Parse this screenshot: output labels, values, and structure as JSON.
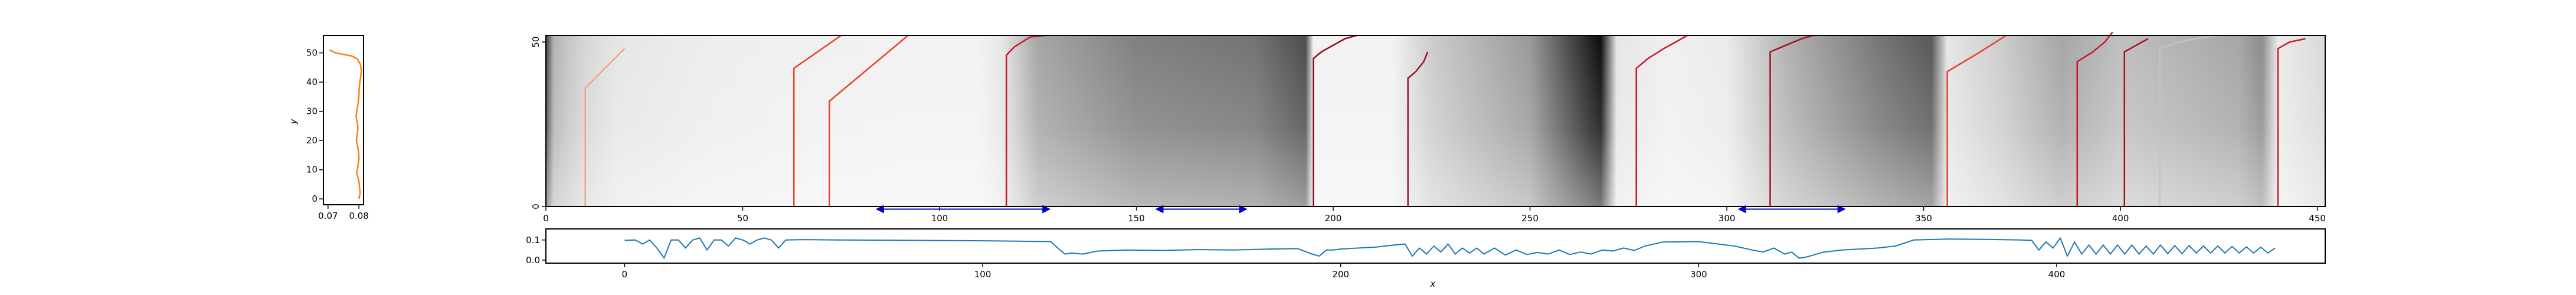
{
  "chart_data": [
    {
      "panel": "left-profile",
      "type": "line",
      "title": "",
      "xlabel": "",
      "ylabel": "y",
      "xlim": [
        0.0685,
        0.0815
      ],
      "ylim": [
        -2,
        56
      ],
      "xticks": [
        0.07,
        0.08
      ],
      "xtick_labels": [
        "0.07",
        "0.08"
      ],
      "yticks": [
        0,
        10,
        20,
        30,
        40,
        50
      ],
      "ytick_labels": [
        "0",
        "10",
        "20",
        "30",
        "40",
        "50"
      ],
      "grid": false,
      "color": "#ff7f0e",
      "series": [
        {
          "x": [
            0.0705,
            0.0725,
            0.075,
            0.0775,
            0.0795,
            0.0805,
            0.0808,
            0.0806,
            0.0803,
            0.0801,
            0.08,
            0.0799,
            0.0796,
            0.0793,
            0.0791,
            0.0795,
            0.0797,
            0.0794,
            0.0792,
            0.0796,
            0.0799,
            0.08,
            0.0798,
            0.0795,
            0.0793,
            0.0795,
            0.0798,
            0.08,
            0.0801,
            0.0802,
            0.0803,
            0.0804,
            0.0802,
            0.08,
            0.0802
          ],
          "y": [
            51,
            50,
            49.5,
            49,
            48,
            46,
            44,
            42,
            40,
            38,
            36,
            34,
            32,
            30,
            28,
            26,
            24,
            22,
            20,
            18,
            16,
            14,
            12,
            10,
            9,
            8,
            7,
            6,
            5,
            4,
            3,
            2,
            1,
            0.5,
            0
          ]
        }
      ]
    },
    {
      "panel": "main-heatmap",
      "type": "heatmap",
      "title": "",
      "xlabel": "",
      "ylabel": "",
      "xlim": [
        0,
        452
      ],
      "ylim": [
        0,
        52
      ],
      "xticks": [
        0,
        50,
        100,
        150,
        200,
        250,
        300,
        350,
        400,
        450
      ],
      "xtick_labels": [
        "0",
        "50",
        "100",
        "150",
        "200",
        "250",
        "300",
        "350",
        "400",
        "450"
      ],
      "yticks": [
        0,
        50
      ],
      "ytick_labels": [
        "0",
        "50"
      ],
      "colormap": "greys",
      "grid": false,
      "column_darkness": [
        [
          0,
          0.75
        ],
        [
          2,
          0.3
        ],
        [
          6,
          0.22
        ],
        [
          10,
          0.16
        ],
        [
          18,
          0.1
        ],
        [
          40,
          0.07
        ],
        [
          60,
          0.06
        ],
        [
          90,
          0.05
        ],
        [
          110,
          0.05
        ],
        [
          116,
          0.1
        ],
        [
          125,
          0.35
        ],
        [
          150,
          0.5
        ],
        [
          180,
          0.55
        ],
        [
          193,
          0.7
        ],
        [
          195,
          0.05
        ],
        [
          215,
          0.05
        ],
        [
          225,
          0.2
        ],
        [
          250,
          0.4
        ],
        [
          268,
          0.95
        ],
        [
          272,
          0.1
        ],
        [
          285,
          0.06
        ],
        [
          300,
          0.08
        ],
        [
          315,
          0.3
        ],
        [
          340,
          0.55
        ],
        [
          352,
          0.65
        ],
        [
          356,
          0.1
        ],
        [
          370,
          0.2
        ],
        [
          385,
          0.35
        ],
        [
          400,
          0.25
        ],
        [
          415,
          0.3
        ],
        [
          430,
          0.35
        ],
        [
          436,
          0.45
        ],
        [
          440,
          0.08
        ],
        [
          452,
          0.15
        ]
      ],
      "overlay_lines": [
        {
          "x": [
            10,
            10,
            20
          ],
          "y": [
            0,
            36,
            48
          ],
          "color": "#f4a582"
        },
        {
          "x": [
            63,
            63,
            75
          ],
          "y": [
            0,
            42,
            52
          ],
          "color": "#e8402a"
        },
        {
          "x": [
            72,
            72,
            92
          ],
          "y": [
            0,
            32,
            52
          ],
          "color": "#e8402a"
        },
        {
          "x": [
            117,
            117,
            119,
            121,
            123,
            127
          ],
          "y": [
            0,
            46,
            48.5,
            50,
            51.5,
            52
          ],
          "color": "#c9172c"
        },
        {
          "x": [
            195,
            195,
            197,
            200,
            203,
            206
          ],
          "y": [
            0,
            45,
            47,
            49,
            51,
            52
          ],
          "color": "#8c0a1f"
        },
        {
          "x": [
            219,
            219,
            221,
            223,
            224
          ],
          "y": [
            0,
            39,
            41,
            44,
            47
          ],
          "color": "#9d0f24"
        },
        {
          "x": [
            277,
            277,
            280,
            284,
            290
          ],
          "y": [
            0,
            42,
            45,
            48,
            52
          ],
          "color": "#c9172c"
        },
        {
          "x": [
            311,
            311,
            315,
            319,
            322
          ],
          "y": [
            0,
            47,
            49,
            51,
            52
          ],
          "color": "#a50f22"
        },
        {
          "x": [
            356,
            356,
            363,
            371
          ],
          "y": [
            0,
            41,
            46,
            52
          ],
          "color": "#e8402a"
        },
        {
          "x": [
            389,
            389,
            393,
            396,
            398
          ],
          "y": [
            0,
            44,
            47,
            50,
            53
          ],
          "color": "#c9172c"
        },
        {
          "x": [
            401,
            401,
            404,
            407
          ],
          "y": [
            0,
            47,
            49,
            51
          ],
          "color": "#a50f22"
        },
        {
          "x": [
            410,
            410,
            415,
            419,
            425
          ],
          "y": [
            0,
            48,
            50,
            51,
            52
          ],
          "color": "#d3bfb0"
        },
        {
          "x": [
            440,
            440,
            443,
            447
          ],
          "y": [
            0,
            48,
            50,
            51
          ],
          "color": "#c9172c"
        }
      ],
      "annotations": [
        {
          "type": "double-arrow",
          "x": [
            84,
            128
          ],
          "y": -0.8,
          "color": "#0000cc"
        },
        {
          "type": "double-arrow",
          "x": [
            155,
            178
          ],
          "y": -0.8,
          "color": "#0000cc"
        },
        {
          "type": "double-arrow",
          "x": [
            303,
            330
          ],
          "y": -0.8,
          "color": "#0000cc"
        }
      ]
    },
    {
      "panel": "bottom-signal",
      "type": "line",
      "title": "",
      "xlabel": "x",
      "ylabel": "",
      "xlim": [
        -22,
        475
      ],
      "ylim": [
        -0.015,
        0.155
      ],
      "xticks": [
        0,
        100,
        200,
        300,
        400
      ],
      "xtick_labels": [
        "0",
        "100",
        "200",
        "300",
        "400"
      ],
      "yticks": [
        0.0,
        0.1
      ],
      "ytick_labels": [
        "0.0",
        "0.1"
      ],
      "grid": false,
      "color": "#1f77b4",
      "series": [
        {
          "x": [
            0,
            3,
            5,
            7,
            9,
            11,
            13,
            15,
            17,
            19,
            21,
            23,
            25,
            27,
            29,
            31,
            33,
            35,
            37,
            39,
            41,
            43,
            45,
            50,
            60,
            80,
            100,
            110,
            115,
            119,
            121,
            123,
            125,
            128,
            132,
            140,
            150,
            160,
            170,
            180,
            188,
            192,
            194,
            196,
            198,
            200,
            205,
            210,
            215,
            218,
            220,
            222,
            224,
            226,
            228,
            230,
            232,
            234,
            236,
            238,
            240,
            243,
            246,
            249,
            252,
            255,
            258,
            261,
            264,
            267,
            270,
            273,
            276,
            279,
            282,
            285,
            290,
            300,
            310,
            315,
            318,
            321,
            324,
            326,
            328,
            330,
            335,
            340,
            350,
            355,
            360,
            370,
            380,
            390,
            393,
            395,
            397,
            399,
            401,
            403,
            405,
            407,
            409,
            411,
            413,
            415,
            417,
            419,
            421,
            423,
            425,
            427,
            429,
            431,
            433,
            435,
            437,
            439,
            441,
            443,
            445,
            447,
            449,
            451,
            453,
            455,
            457,
            459,
            461
          ],
          "y": [
            0.098,
            0.1,
            0.08,
            0.1,
            0.06,
            0.01,
            0.1,
            0.1,
            0.06,
            0.1,
            0.11,
            0.05,
            0.1,
            0.1,
            0.07,
            0.11,
            0.1,
            0.08,
            0.1,
            0.11,
            0.1,
            0.06,
            0.1,
            0.102,
            0.1,
            0.098,
            0.096,
            0.094,
            0.093,
            0.092,
            0.06,
            0.03,
            0.035,
            0.03,
            0.045,
            0.05,
            0.048,
            0.052,
            0.05,
            0.055,
            0.057,
            0.03,
            0.02,
            0.05,
            0.05,
            0.055,
            0.06,
            0.065,
            0.075,
            0.08,
            0.02,
            0.06,
            0.03,
            0.07,
            0.04,
            0.08,
            0.03,
            0.06,
            0.035,
            0.06,
            0.03,
            0.06,
            0.025,
            0.05,
            0.028,
            0.038,
            0.03,
            0.05,
            0.028,
            0.04,
            0.03,
            0.05,
            0.045,
            0.06,
            0.048,
            0.07,
            0.09,
            0.092,
            0.07,
            0.05,
            0.04,
            0.06,
            0.03,
            0.04,
            0.01,
            0.015,
            0.04,
            0.05,
            0.06,
            0.07,
            0.1,
            0.105,
            0.103,
            0.1,
            0.098,
            0.05,
            0.09,
            0.06,
            0.11,
            0.02,
            0.09,
            0.03,
            0.075,
            0.03,
            0.075,
            0.03,
            0.075,
            0.03,
            0.075,
            0.03,
            0.07,
            0.03,
            0.075,
            0.032,
            0.072,
            0.032,
            0.072,
            0.035,
            0.07,
            0.035,
            0.07,
            0.035,
            0.068,
            0.035,
            0.066,
            0.035,
            0.064,
            0.035,
            0.06
          ]
        }
      ]
    }
  ]
}
